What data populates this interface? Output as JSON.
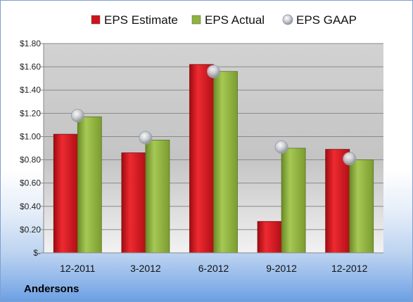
{
  "chart_data": {
    "type": "bar",
    "categories": [
      "12-2011",
      "3-2012",
      "6-2012",
      "9-2012",
      "12-2012"
    ],
    "series": [
      {
        "name": "EPS Estimate",
        "kind": "bar",
        "color": "#d0121b",
        "values": [
          1.02,
          0.86,
          1.62,
          0.27,
          0.89
        ]
      },
      {
        "name": "EPS Actual",
        "kind": "bar",
        "color": "#8fb33c",
        "values": [
          1.17,
          0.97,
          1.56,
          0.9,
          0.8
        ]
      },
      {
        "name": "EPS GAAP",
        "kind": "marker",
        "color": "#b8bcc4",
        "values": [
          1.18,
          0.99,
          1.56,
          0.91,
          0.81
        ]
      }
    ],
    "yticks": [
      {
        "value": 1.8,
        "label": "$1.80"
      },
      {
        "value": 1.6,
        "label": "$1.60"
      },
      {
        "value": 1.4,
        "label": "$1.40"
      },
      {
        "value": 1.2,
        "label": "$1.20"
      },
      {
        "value": 1.0,
        "label": "$1.00"
      },
      {
        "value": 0.8,
        "label": "$0.80"
      },
      {
        "value": 0.6,
        "label": "$0.60"
      },
      {
        "value": 0.4,
        "label": "$0.40"
      },
      {
        "value": 0.2,
        "label": "$0.20"
      },
      {
        "value": 0.0,
        "label": "$-"
      }
    ],
    "ylim": [
      0,
      1.8
    ],
    "grid": true,
    "legend_position": "top",
    "title": "",
    "xlabel": "",
    "ylabel": ""
  },
  "company_label": "Andersons"
}
